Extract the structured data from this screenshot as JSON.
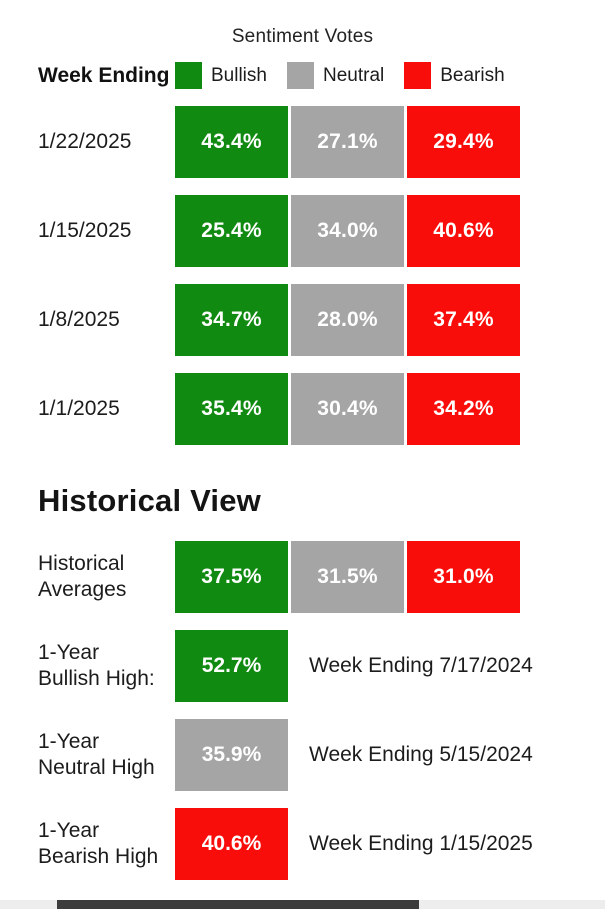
{
  "colors": {
    "bullish": "#118a11",
    "neutral": "#a6a5a5",
    "bearish": "#f90d0b",
    "scrollbar": "#3c3c3c"
  },
  "header": {
    "title": "Sentiment Votes",
    "week_ending_label": "Week Ending",
    "legend": [
      {
        "label": "Bullish"
      },
      {
        "label": "Neutral"
      },
      {
        "label": "Bearish"
      }
    ]
  },
  "historical_heading": "Historical View",
  "chart_data": {
    "type": "table",
    "title": "Sentiment Votes",
    "series_labels": [
      "Bullish",
      "Neutral",
      "Bearish"
    ],
    "weekly": [
      {
        "week": "1/22/2025",
        "bullish": 43.4,
        "neutral": 27.1,
        "bearish": 29.4,
        "bullish_label": "43.4%",
        "neutral_label": "27.1%",
        "bearish_label": "29.4%"
      },
      {
        "week": "1/15/2025",
        "bullish": 25.4,
        "neutral": 34.0,
        "bearish": 40.6,
        "bullish_label": "25.4%",
        "neutral_label": "34.0%",
        "bearish_label": "40.6%"
      },
      {
        "week": "1/8/2025",
        "bullish": 34.7,
        "neutral": 28.0,
        "bearish": 37.4,
        "bullish_label": "34.7%",
        "neutral_label": "28.0%",
        "bearish_label": "37.4%"
      },
      {
        "week": "1/1/2025",
        "bullish": 35.4,
        "neutral": 30.4,
        "bearish": 34.2,
        "bullish_label": "35.4%",
        "neutral_label": "30.4%",
        "bearish_label": "34.2%"
      }
    ],
    "historical_averages": {
      "label": "Historical Averages",
      "bullish": 37.5,
      "neutral": 31.5,
      "bearish": 31.0,
      "bullish_label": "37.5%",
      "neutral_label": "31.5%",
      "bearish_label": "31.0%"
    },
    "highs": [
      {
        "label": "1-Year Bullish High:",
        "value": 52.7,
        "value_label": "52.7%",
        "note": "Week Ending 7/17/2024"
      },
      {
        "label": "1-Year Neutral High",
        "value": 35.9,
        "value_label": "35.9%",
        "note": "Week Ending 5/15/2024"
      },
      {
        "label": "1-Year Bearish High",
        "value": 40.6,
        "value_label": "40.6%",
        "note": "Week Ending 1/15/2025"
      }
    ]
  }
}
